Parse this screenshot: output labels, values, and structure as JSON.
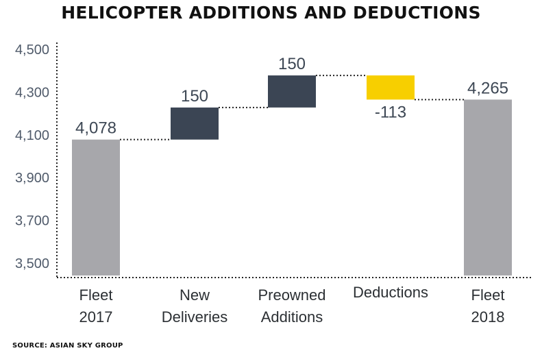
{
  "title": "HELICOPTER ADDITIONS AND DEDUCTIONS",
  "source": "SOURCE: ASIAN SKY GROUP",
  "chart_data": {
    "type": "bar",
    "subtype": "waterfall",
    "title": "HELICOPTER ADDITIONS AND DEDUCTIONS",
    "xlabel": "",
    "ylabel": "",
    "ylim": [
      3450,
      4500
    ],
    "yticks": [
      {
        "value": 3500,
        "label": "3,500"
      },
      {
        "value": 3700,
        "label": "3,700"
      },
      {
        "value": 3900,
        "label": "3,900"
      },
      {
        "value": 4100,
        "label": "4,100"
      },
      {
        "value": 4300,
        "label": "4,300"
      },
      {
        "value": 4500,
        "label": "4,500"
      }
    ],
    "grid": false,
    "connector_lines": true,
    "bars": [
      {
        "category": [
          "Fleet",
          "2017"
        ],
        "kind": "total",
        "start": 3450,
        "end": 4078,
        "value_label": "4,078",
        "color": "#a7a7ab"
      },
      {
        "category": [
          "New",
          "Deliveries"
        ],
        "kind": "increase",
        "start": 4078,
        "end": 4228,
        "value_label": "150",
        "color": "#3b4554"
      },
      {
        "category": [
          "Preowned",
          "Additions"
        ],
        "kind": "increase",
        "start": 4228,
        "end": 4378,
        "value_label": "150",
        "color": "#3b4554"
      },
      {
        "category": [
          "Deductions"
        ],
        "kind": "decrease",
        "start": 4378,
        "end": 4265,
        "value_label": "-113",
        "color": "#f7cf00"
      },
      {
        "category": [
          "Fleet",
          "2018"
        ],
        "kind": "total",
        "start": 3450,
        "end": 4265,
        "value_label": "4,265",
        "color": "#a7a7ab"
      }
    ]
  }
}
